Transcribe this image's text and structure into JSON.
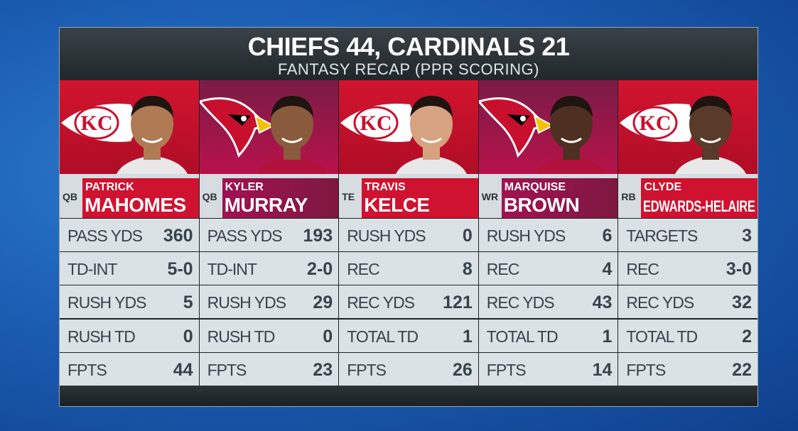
{
  "header": {
    "title": "CHIEFS 44, CARDINALS 21",
    "subtitle": "FANTASY RECAP (PPR SCORING)"
  },
  "players": [
    {
      "position": "QB",
      "first_name": "PATRICK",
      "last_name": "MAHOMES",
      "color": "#c8102e",
      "stats": [
        [
          "PASS YDS",
          360
        ],
        [
          "TD-INT",
          "5-0"
        ],
        [
          "RUSH YDS",
          5
        ],
        [
          "RUSH TD",
          0
        ],
        [
          "FPTS",
          44
        ]
      ]
    },
    {
      "position": "QB",
      "first_name": "KYLER",
      "last_name": "MURRAY",
      "color": "#97233f",
      "stats": [
        [
          "PASS YDS",
          193
        ],
        [
          "TD-INT",
          "2-0"
        ],
        [
          "RUSH YDS",
          29
        ],
        [
          "RUSH TD",
          0
        ],
        [
          "FPTS",
          23
        ]
      ]
    },
    {
      "position": "TE",
      "first_name": "TRAVIS",
      "last_name": "KELCE",
      "color": "#c8102e",
      "stats": [
        [
          "RUSH YDS",
          0
        ],
        [
          "REC",
          8
        ],
        [
          "REC YDS",
          121
        ],
        [
          "TOTAL TD",
          1
        ],
        [
          "FPTS",
          26
        ]
      ]
    },
    {
      "position": "WR",
      "first_name": "MARQUISE",
      "last_name": "BROWN",
      "color": "#97233f",
      "stats": [
        [
          "RUSH YDS",
          6
        ],
        [
          "REC",
          4
        ],
        [
          "REC YDS",
          43
        ],
        [
          "TOTAL TD",
          1
        ],
        [
          "FPTS",
          14
        ]
      ]
    },
    {
      "position": "RB",
      "first_name": "CLYDE",
      "last_name": "EDWARDS-HELAIRE",
      "color": "#c8102e",
      "stats": [
        [
          "TARGETS",
          3
        ],
        [
          "REC",
          "3-0"
        ],
        [
          "REC YDS",
          32
        ],
        [
          "TOTAL TD",
          2
        ],
        [
          "FPTS",
          22
        ]
      ]
    }
  ]
}
